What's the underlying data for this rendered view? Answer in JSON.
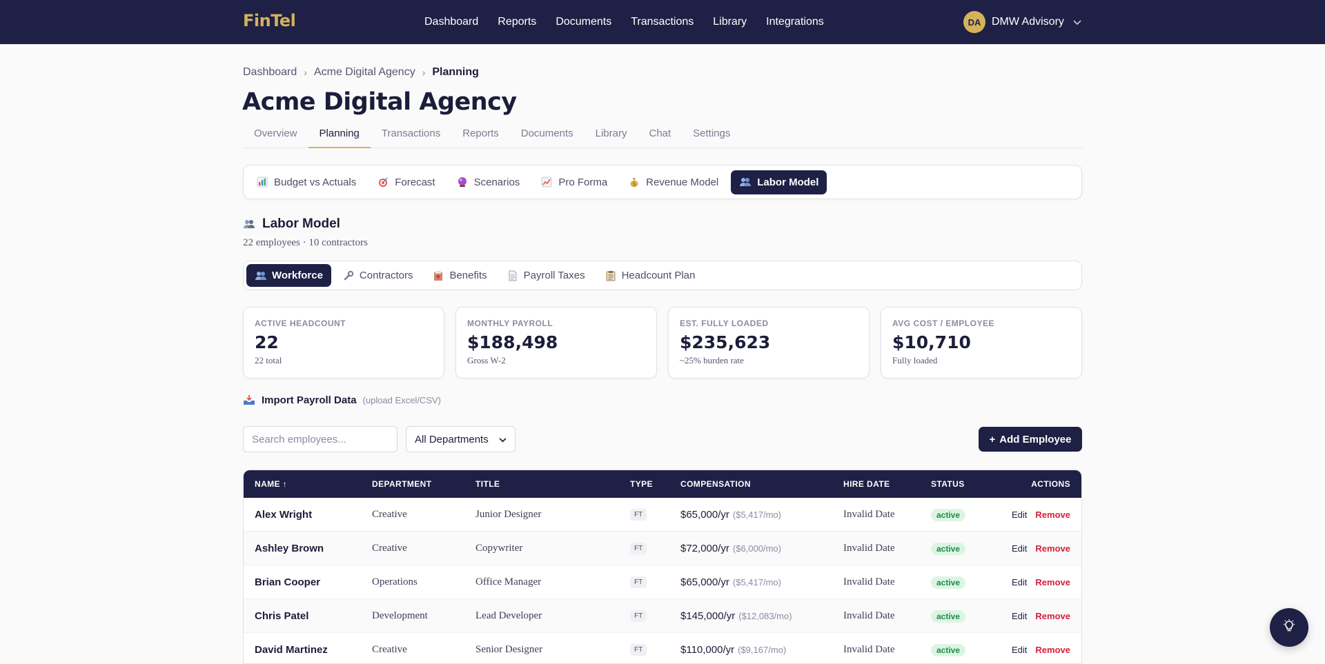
{
  "app": {
    "logo": "FinTel"
  },
  "nav": {
    "items": [
      "Dashboard",
      "Reports",
      "Documents",
      "Transactions",
      "Library",
      "Integrations"
    ]
  },
  "account": {
    "initials": "DA",
    "name": "DMW Advisory"
  },
  "breadcrumb": [
    "Dashboard",
    "Acme Digital Agency",
    "Planning"
  ],
  "page": {
    "title": "Acme Digital Agency"
  },
  "tabs": [
    "Overview",
    "Planning",
    "Transactions",
    "Reports",
    "Documents",
    "Library",
    "Chat",
    "Settings"
  ],
  "subtabs": [
    {
      "label": "Budget vs Actuals",
      "icon": "bar-chart-icon"
    },
    {
      "label": "Forecast",
      "icon": "target-icon"
    },
    {
      "label": "Scenarios",
      "icon": "crystal-ball-icon"
    },
    {
      "label": "Pro Forma",
      "icon": "trend-chart-icon"
    },
    {
      "label": "Revenue Model",
      "icon": "money-bag-icon"
    },
    {
      "label": "Labor Model",
      "icon": "people-icon"
    }
  ],
  "section": {
    "title": "Labor Model",
    "subtitle": "22 employees · 10 contractors"
  },
  "innertabs": [
    {
      "label": "Workforce",
      "icon": "people-icon"
    },
    {
      "label": "Contractors",
      "icon": "wrench-icon"
    },
    {
      "label": "Benefits",
      "icon": "hospital-icon"
    },
    {
      "label": "Payroll Taxes",
      "icon": "document-icon"
    },
    {
      "label": "Headcount Plan",
      "icon": "clipboard-icon"
    }
  ],
  "stats": [
    {
      "label": "ACTIVE HEADCOUNT",
      "value": "22",
      "note": "22 total"
    },
    {
      "label": "MONTHLY PAYROLL",
      "value": "$188,498",
      "note": "Gross W-2"
    },
    {
      "label": "EST. FULLY LOADED",
      "value": "$235,623",
      "note": "~25% burden rate"
    },
    {
      "label": "AVG COST / EMPLOYEE",
      "value": "$10,710",
      "note": "Fully loaded"
    }
  ],
  "import": {
    "label": "Import Payroll Data",
    "hint": "(upload Excel/CSV)"
  },
  "search": {
    "placeholder": "Search employees..."
  },
  "dept_filter": {
    "selected": "All Departments"
  },
  "add_button": {
    "label": "Add Employee"
  },
  "table": {
    "headers": [
      "NAME ↑",
      "DEPARTMENT",
      "TITLE",
      "TYPE",
      "COMPENSATION",
      "HIRE DATE",
      "STATUS",
      "ACTIONS"
    ],
    "rows": [
      {
        "name": "Alex Wright",
        "department": "Creative",
        "title": "Junior Designer",
        "type": "FT",
        "comp": "$65,000/yr",
        "monthly": "($5,417/mo)",
        "hire": "Invalid Date",
        "status": "active"
      },
      {
        "name": "Ashley Brown",
        "department": "Creative",
        "title": "Copywriter",
        "type": "FT",
        "comp": "$72,000/yr",
        "monthly": "($6,000/mo)",
        "hire": "Invalid Date",
        "status": "active"
      },
      {
        "name": "Brian Cooper",
        "department": "Operations",
        "title": "Office Manager",
        "type": "FT",
        "comp": "$65,000/yr",
        "monthly": "($5,417/mo)",
        "hire": "Invalid Date",
        "status": "active"
      },
      {
        "name": "Chris Patel",
        "department": "Development",
        "title": "Lead Developer",
        "type": "FT",
        "comp": "$145,000/yr",
        "monthly": "($12,083/mo)",
        "hire": "Invalid Date",
        "status": "active"
      },
      {
        "name": "David Martinez",
        "department": "Creative",
        "title": "Senior Designer",
        "type": "FT",
        "comp": "$110,000/yr",
        "monthly": "($9,167/mo)",
        "hire": "Invalid Date",
        "status": "active"
      }
    ],
    "edit_label": "Edit",
    "remove_label": "Remove"
  },
  "colors": {
    "navy": "#1f2045",
    "gold": "#d4b25c",
    "active_green": "#1c8a45",
    "remove_red": "#d4203a"
  }
}
